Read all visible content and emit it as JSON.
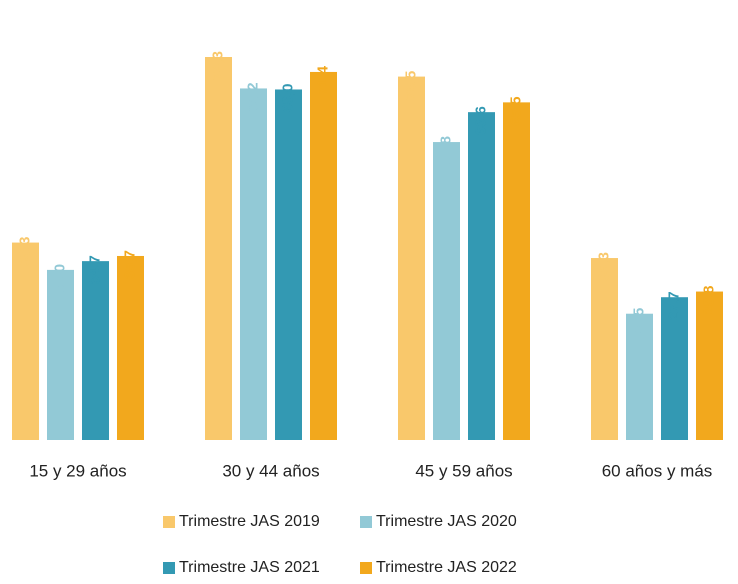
{
  "chart_data": {
    "type": "bar",
    "categories": [
      "15 y 29 años",
      "30 y 44 años",
      "45 y 59 años",
      "60 años y más"
    ],
    "series": [
      {
        "name": "Trimestre JAS 2019",
        "color": "#f9c86b",
        "values": [
          38.3,
          74.3,
          70.5,
          35.3
        ],
        "value_labels": [
          "38,3",
          "74,3",
          "70,5",
          "35,3"
        ]
      },
      {
        "name": "Trimestre JAS 2020",
        "color": "#92c9d6",
        "values": [
          33.0,
          68.2,
          57.8,
          24.5
        ],
        "value_labels": [
          "33,0",
          "68,2",
          "57,8",
          "24,5"
        ]
      },
      {
        "name": "Trimestre JAS 2021",
        "color": "#3399b3",
        "values": [
          34.7,
          68.0,
          63.6,
          27.7
        ],
        "value_labels": [
          "34,7",
          "68,0",
          "63,6",
          "27,7"
        ]
      },
      {
        "name": "Trimestre JAS 2022",
        "color": "#f2a81d",
        "values": [
          35.7,
          71.4,
          65.5,
          28.8
        ],
        "value_labels": [
          "35,7",
          "71,4",
          "65,5",
          "28,8"
        ]
      }
    ],
    "legend": "bottom"
  }
}
